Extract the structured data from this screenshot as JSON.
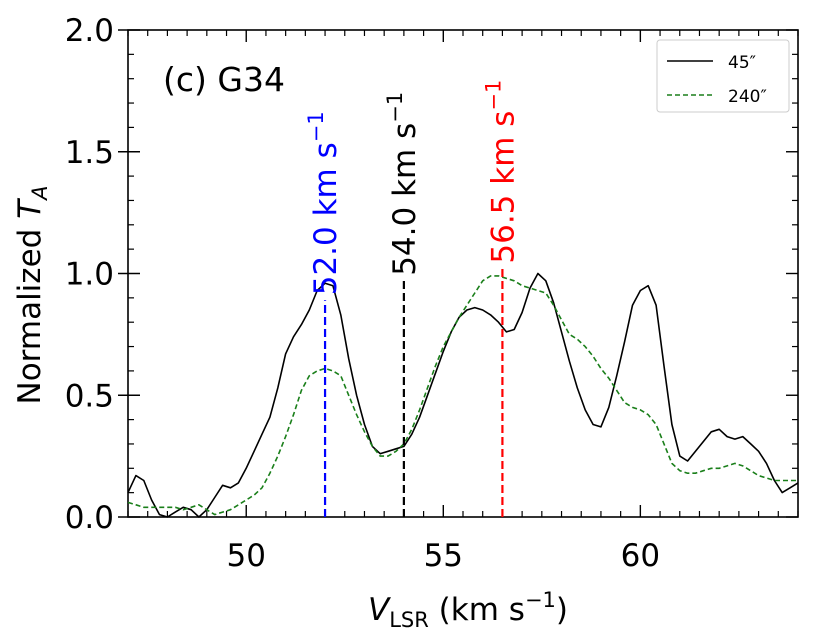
{
  "chart_data": {
    "type": "line",
    "panel_label": "(c) G34",
    "xlabel": {
      "main": "V",
      "sub": "LSR",
      "units": " (km s",
      "sup": "−1",
      "close": ")"
    },
    "ylabel": {
      "main": "Normalized ",
      "var": "T",
      "sub": "A"
    },
    "xlim": [
      47,
      64
    ],
    "ylim": [
      0,
      2
    ],
    "x_ticks": [
      50,
      55,
      60
    ],
    "y_ticks": [
      0,
      0.5,
      1.0,
      1.5,
      2.0
    ],
    "x_tick_labels": [
      "50",
      "55",
      "60"
    ],
    "y_tick_labels": [
      "0.0",
      "0.5",
      "1.0",
      "1.5",
      "2.0"
    ],
    "legend_position": "top-right",
    "series": [
      {
        "name": "45″",
        "color": "#000000",
        "style": "solid",
        "x": [
          47.0,
          47.2,
          47.4,
          47.6,
          47.8,
          48.0,
          48.2,
          48.4,
          48.6,
          48.8,
          49.0,
          49.2,
          49.4,
          49.6,
          49.8,
          50.0,
          50.2,
          50.4,
          50.6,
          50.8,
          51.0,
          51.2,
          51.4,
          51.6,
          51.8,
          52.0,
          52.2,
          52.4,
          52.6,
          52.8,
          53.0,
          53.2,
          53.4,
          53.6,
          53.8,
          54.0,
          54.2,
          54.4,
          54.6,
          54.8,
          55.0,
          55.2,
          55.4,
          55.6,
          55.8,
          56.0,
          56.2,
          56.4,
          56.6,
          56.8,
          57.0,
          57.2,
          57.4,
          57.6,
          57.8,
          58.0,
          58.2,
          58.4,
          58.6,
          58.8,
          59.0,
          59.2,
          59.4,
          59.6,
          59.8,
          60.0,
          60.2,
          60.4,
          60.6,
          60.8,
          61.0,
          61.2,
          61.4,
          61.6,
          61.8,
          62.0,
          62.2,
          62.4,
          62.6,
          62.8,
          63.0,
          63.2,
          63.4,
          63.6,
          63.8,
          64.0
        ],
        "values": [
          0.1,
          0.17,
          0.15,
          0.07,
          0.01,
          0.0,
          0.02,
          0.04,
          0.03,
          0.0,
          0.03,
          0.08,
          0.13,
          0.12,
          0.14,
          0.2,
          0.27,
          0.34,
          0.41,
          0.53,
          0.67,
          0.74,
          0.79,
          0.85,
          0.93,
          0.96,
          0.95,
          0.83,
          0.65,
          0.5,
          0.38,
          0.29,
          0.26,
          0.27,
          0.28,
          0.29,
          0.34,
          0.41,
          0.5,
          0.59,
          0.68,
          0.76,
          0.82,
          0.85,
          0.86,
          0.85,
          0.83,
          0.8,
          0.76,
          0.77,
          0.84,
          0.94,
          1.0,
          0.97,
          0.88,
          0.76,
          0.64,
          0.53,
          0.44,
          0.38,
          0.37,
          0.45,
          0.58,
          0.72,
          0.87,
          0.93,
          0.95,
          0.87,
          0.62,
          0.38,
          0.25,
          0.23,
          0.27,
          0.31,
          0.35,
          0.36,
          0.33,
          0.32,
          0.33,
          0.3,
          0.27,
          0.22,
          0.15,
          0.1,
          0.12,
          0.14
        ]
      },
      {
        "name": "240″",
        "color": "#1a7f1a",
        "style": "dashed",
        "x": [
          47.0,
          47.2,
          47.4,
          47.6,
          47.8,
          48.0,
          48.2,
          48.4,
          48.6,
          48.8,
          49.0,
          49.2,
          49.4,
          49.6,
          49.8,
          50.0,
          50.2,
          50.4,
          50.6,
          50.8,
          51.0,
          51.2,
          51.4,
          51.6,
          51.8,
          52.0,
          52.2,
          52.4,
          52.6,
          52.8,
          53.0,
          53.2,
          53.4,
          53.6,
          53.8,
          54.0,
          54.2,
          54.4,
          54.6,
          54.8,
          55.0,
          55.2,
          55.4,
          55.6,
          55.8,
          56.0,
          56.2,
          56.4,
          56.6,
          56.8,
          57.0,
          57.2,
          57.4,
          57.6,
          57.8,
          58.0,
          58.2,
          58.4,
          58.6,
          58.8,
          59.0,
          59.2,
          59.4,
          59.6,
          59.8,
          60.0,
          60.2,
          60.4,
          60.6,
          60.8,
          61.0,
          61.2,
          61.4,
          61.6,
          61.8,
          62.0,
          62.2,
          62.4,
          62.6,
          62.8,
          63.0,
          63.2,
          63.4,
          63.6,
          63.8,
          64.0
        ],
        "values": [
          0.06,
          0.05,
          0.04,
          0.04,
          0.04,
          0.04,
          0.04,
          0.03,
          0.04,
          0.05,
          0.03,
          0.01,
          0.02,
          0.03,
          0.05,
          0.07,
          0.09,
          0.12,
          0.18,
          0.25,
          0.33,
          0.42,
          0.52,
          0.58,
          0.6,
          0.61,
          0.6,
          0.58,
          0.5,
          0.42,
          0.35,
          0.29,
          0.25,
          0.25,
          0.27,
          0.3,
          0.36,
          0.44,
          0.53,
          0.62,
          0.7,
          0.76,
          0.82,
          0.87,
          0.92,
          0.97,
          0.99,
          0.99,
          0.98,
          0.97,
          0.95,
          0.94,
          0.93,
          0.92,
          0.87,
          0.81,
          0.75,
          0.73,
          0.7,
          0.66,
          0.61,
          0.57,
          0.52,
          0.47,
          0.45,
          0.44,
          0.42,
          0.38,
          0.3,
          0.22,
          0.19,
          0.18,
          0.18,
          0.19,
          0.2,
          0.2,
          0.21,
          0.22,
          0.21,
          0.19,
          0.17,
          0.16,
          0.15,
          0.15,
          0.15,
          0.15
        ]
      }
    ],
    "vlines": [
      {
        "x": 52.0,
        "label": "52.0 km s",
        "sup": "−1",
        "color": "#0000ff",
        "y_top": 0.89
      },
      {
        "x": 54.0,
        "label": "54.0 km s",
        "sup": "−1",
        "color": "#000000",
        "y_top": 0.97
      },
      {
        "x": 56.5,
        "label": "56.5 km s",
        "sup": "−1",
        "color": "#ff0000",
        "y_top": 1.02
      }
    ]
  }
}
